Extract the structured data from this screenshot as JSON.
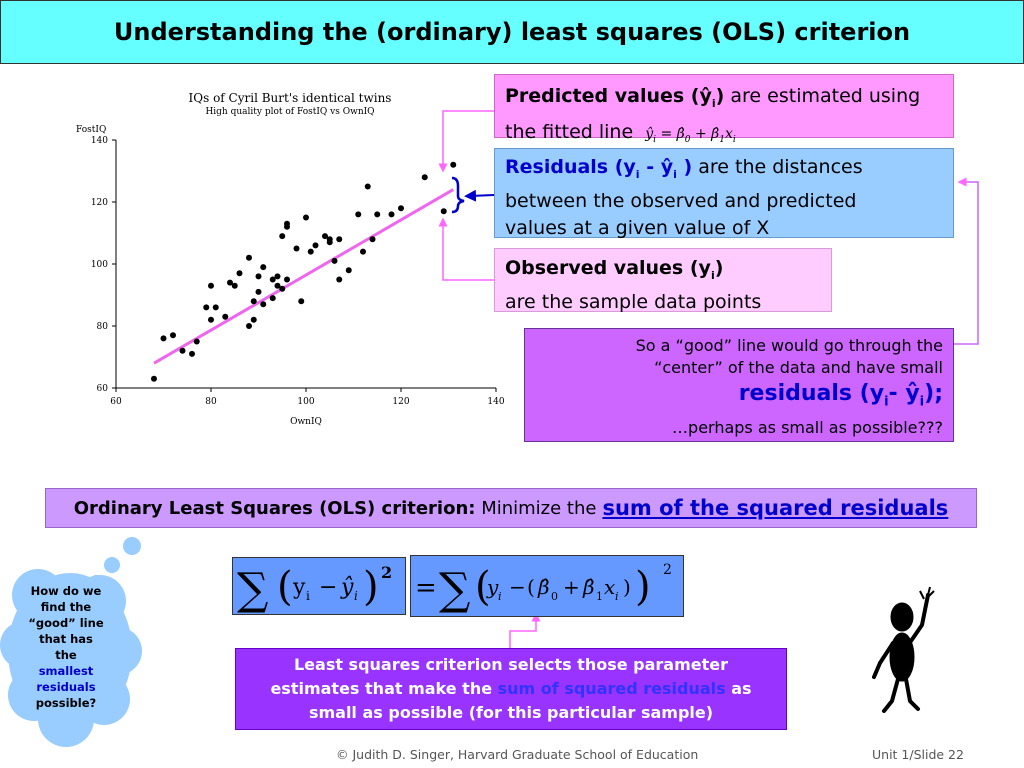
{
  "slide": {
    "title": "Understanding the (ordinary) least squares (OLS) criterion"
  },
  "predicted_box": {
    "bold": "Predicted values (ŷ",
    "sub": "i",
    "bold_end": ")",
    "text": " are estimated using",
    "line2": "the fitted line"
  },
  "residuals_box": {
    "bold_prefix": "Residuals (y",
    "sub1": "i",
    "dash": " - ŷ",
    "sub2": "i",
    "close": " )",
    "text1": " are the distances",
    "text2": "between the observed and predicted",
    "text3": "values at a given value of X"
  },
  "observed_box": {
    "bold_prefix": "Observed values (y",
    "sub": "i",
    "close": ")",
    "line2": "are the sample data points"
  },
  "good_box": {
    "line1": "So a “good” line would go through the",
    "line2": "“center” of the data and have small",
    "big_prefix": "residuals (y",
    "big_sub1": "i",
    "big_dash": "- ŷ",
    "big_sub2": "i",
    "big_end": ");",
    "line4": "…perhaps as small as possible???"
  },
  "ols_box": {
    "bold": "Ordinary Least Squares (OLS) criterion:",
    "text": " Minimize the",
    "link": "sum of the squared residuals"
  },
  "ls_box": {
    "line1": "Least squares criterion selects those parameter",
    "line2_a": "estimates that make the ",
    "line2_hl": "sum of squared residuals",
    "line2_b": " as",
    "line3": "small as possible (for this particular sample)"
  },
  "cloud": {
    "l1": "How do we",
    "l2": "find the",
    "l3": "“good” line",
    "l4": "that has",
    "l5": "the",
    "l6": "smallest",
    "l7": "residuals",
    "l8": "possible?"
  },
  "footer": {
    "left": "© Judith D. Singer, Harvard Graduate School of Education",
    "right": "Unit 1/Slide 22"
  },
  "chart_data": {
    "type": "scatter",
    "title": "IQs of Cyril Burt's identical twins",
    "subtitle": "High quality plot of FostIQ vs OwnIQ",
    "xlabel": "OwnIQ",
    "ylabel": "FostIQ",
    "xlim": [
      60,
      140
    ],
    "ylim": [
      60,
      140
    ],
    "xticks": [
      60,
      80,
      100,
      120,
      140
    ],
    "yticks": [
      60,
      80,
      100,
      120,
      140
    ],
    "fit_line": {
      "x": [
        68,
        131
      ],
      "y": [
        68,
        124
      ]
    },
    "points": [
      [
        68,
        63
      ],
      [
        70,
        76
      ],
      [
        72,
        77
      ],
      [
        74,
        72
      ],
      [
        76,
        71
      ],
      [
        77,
        75
      ],
      [
        79,
        86
      ],
      [
        80,
        93
      ],
      [
        80,
        82
      ],
      [
        81,
        86
      ],
      [
        83,
        83
      ],
      [
        84,
        94
      ],
      [
        85,
        93
      ],
      [
        86,
        97
      ],
      [
        88,
        102
      ],
      [
        88,
        80
      ],
      [
        89,
        82
      ],
      [
        89,
        88
      ],
      [
        90,
        96
      ],
      [
        90,
        91
      ],
      [
        91,
        99
      ],
      [
        91,
        87
      ],
      [
        93,
        89
      ],
      [
        93,
        95
      ],
      [
        94,
        96
      ],
      [
        94,
        93
      ],
      [
        95,
        109
      ],
      [
        95,
        92
      ],
      [
        96,
        112
      ],
      [
        96,
        113
      ],
      [
        96,
        95
      ],
      [
        98,
        105
      ],
      [
        99,
        88
      ],
      [
        100,
        115
      ],
      [
        101,
        104
      ],
      [
        102,
        106
      ],
      [
        104,
        109
      ],
      [
        105,
        107
      ],
      [
        105,
        108
      ],
      [
        106,
        101
      ],
      [
        107,
        108
      ],
      [
        107,
        95
      ],
      [
        109,
        98
      ],
      [
        111,
        116
      ],
      [
        112,
        104
      ],
      [
        113,
        125
      ],
      [
        114,
        108
      ],
      [
        115,
        116
      ],
      [
        118,
        116
      ],
      [
        120,
        118
      ],
      [
        125,
        128
      ],
      [
        129,
        117
      ],
      [
        131,
        132
      ]
    ]
  }
}
